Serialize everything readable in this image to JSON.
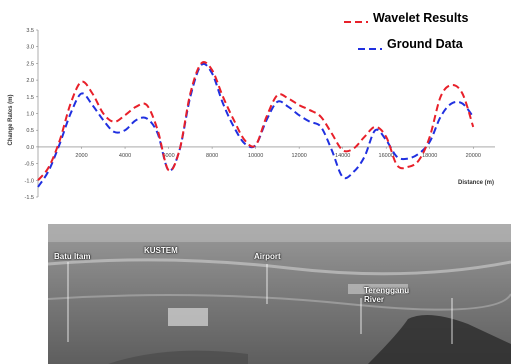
{
  "chart_data": {
    "type": "line",
    "title": "",
    "xlabel": "Distance (m)",
    "ylabel": "Change Rates (m)",
    "xlim": [
      0,
      21000
    ],
    "ylim": [
      -1.5,
      3.5
    ],
    "x_ticks": [
      "2000",
      "4000",
      "6000",
      "8000",
      "10000",
      "12000",
      "14000",
      "16000",
      "18000",
      "20000"
    ],
    "x_tick_values": [
      2000,
      4000,
      6000,
      8000,
      10000,
      12000,
      14000,
      16000,
      18000,
      20000
    ],
    "y_ticks": [
      "3.5",
      "3.0",
      "2.5",
      "2.0",
      "1.5",
      "1.0",
      "0.5",
      "0.0",
      "-0.5",
      "-1.0",
      "-1.5"
    ],
    "y_tick_values": [
      3.5,
      3.0,
      2.5,
      2.0,
      1.5,
      1.0,
      0.5,
      0.0,
      -0.5,
      -1.0,
      -1.5
    ],
    "legend_position": "top-right",
    "series": [
      {
        "name": "Wavelet Results",
        "color": "#e8202a",
        "x": [
          0,
          500,
          1000,
          1500,
          2000,
          2500,
          3000,
          3500,
          4000,
          4500,
          5000,
          5500,
          6000,
          6500,
          7000,
          7500,
          8000,
          8500,
          9000,
          9500,
          10000,
          10500,
          11000,
          11500,
          12000,
          12500,
          13000,
          13500,
          14000,
          14500,
          15000,
          15500,
          16000,
          16500,
          17000,
          17500,
          18000,
          18500,
          19000,
          19500,
          20000
        ],
        "y": [
          -1.0,
          -0.6,
          0.2,
          1.3,
          1.95,
          1.6,
          1.0,
          0.75,
          0.95,
          1.2,
          1.25,
          0.5,
          -0.7,
          -0.1,
          1.6,
          2.5,
          2.3,
          1.5,
          0.8,
          0.2,
          0.05,
          0.9,
          1.55,
          1.45,
          1.25,
          1.1,
          0.9,
          0.4,
          -0.1,
          -0.05,
          0.3,
          0.6,
          0.3,
          -0.55,
          -0.6,
          -0.4,
          0.3,
          1.5,
          1.85,
          1.6,
          0.6
        ]
      },
      {
        "name": "Ground Data",
        "color": "#2030e0",
        "x": [
          0,
          500,
          1000,
          1500,
          2000,
          2500,
          3000,
          3500,
          4000,
          4500,
          5000,
          5500,
          6000,
          6500,
          7000,
          7500,
          8000,
          8500,
          9000,
          9500,
          10000,
          10500,
          11000,
          11500,
          12000,
          12500,
          13000,
          13500,
          14000,
          14500,
          15000,
          15500,
          16000,
          16500,
          17000,
          17500,
          18000,
          18500,
          19000,
          19500,
          20000
        ],
        "y": [
          -1.2,
          -0.7,
          0.1,
          1.0,
          1.6,
          1.25,
          0.8,
          0.45,
          0.5,
          0.8,
          0.85,
          0.4,
          -0.7,
          -0.1,
          1.5,
          2.45,
          2.2,
          1.3,
          0.6,
          0.1,
          0.05,
          0.8,
          1.35,
          1.2,
          0.95,
          0.75,
          0.6,
          -0.1,
          -0.9,
          -0.75,
          -0.3,
          0.5,
          0.2,
          -0.3,
          -0.35,
          -0.2,
          0.15,
          0.9,
          1.3,
          1.3,
          0.9
        ]
      }
    ]
  },
  "photo": {
    "labels": [
      "Batu Itam",
      "KUSTEM",
      "Airport",
      "Terengganu\nRiver"
    ]
  }
}
